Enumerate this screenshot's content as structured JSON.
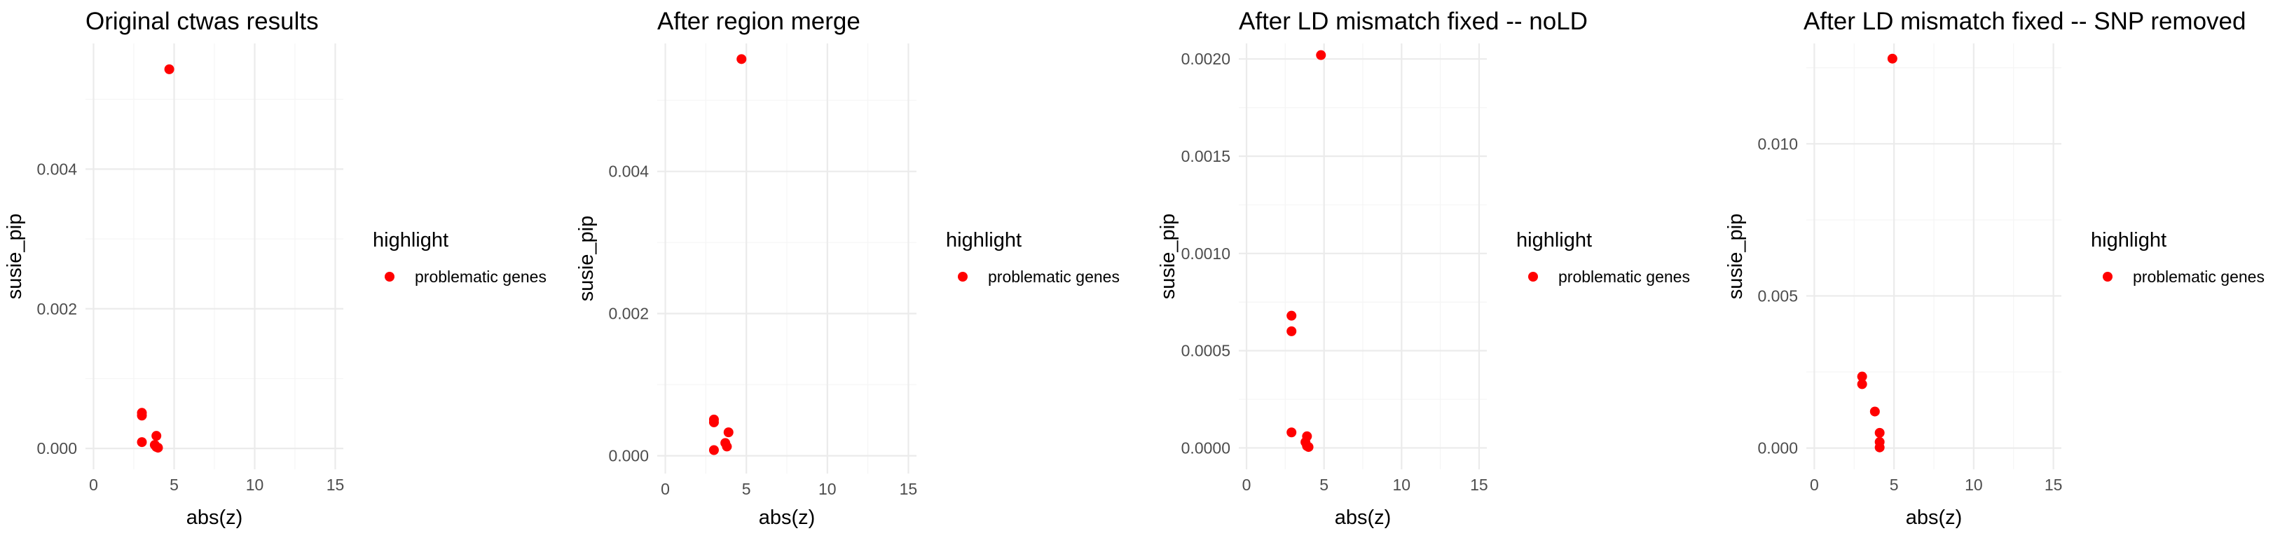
{
  "chart_data": [
    {
      "type": "scatter",
      "title": "Original ctwas results",
      "xlabel": "abs(z)",
      "ylabel": "susie_pip",
      "xlim": [
        -0.5,
        15.5
      ],
      "ylim": [
        -0.0003,
        0.0058
      ],
      "x_ticks": [
        0,
        5,
        10,
        15
      ],
      "x_tick_labels": [
        "0",
        "5",
        "10",
        "15"
      ],
      "y_ticks": [
        0,
        0.002,
        0.004
      ],
      "y_tick_labels": [
        "0.000",
        "0.002",
        "0.004"
      ],
      "grid": true,
      "legend": {
        "title": "highlight",
        "placement": "right",
        "entries": [
          "problematic genes"
        ]
      },
      "point_color": "#ff0000",
      "series": [
        {
          "name": "problematic genes",
          "x": [
            4.7,
            3.0,
            3.0,
            3.0,
            3.9,
            3.8,
            3.9,
            4.0
          ],
          "y": [
            0.00543,
            0.00051,
            0.00047,
            9e-05,
            0.00018,
            5e-05,
            2e-05,
            1e-05
          ]
        }
      ]
    },
    {
      "type": "scatter",
      "title": "After region merge",
      "xlabel": "abs(z)",
      "ylabel": "susie_pip",
      "xlim": [
        -0.5,
        15.5
      ],
      "ylim": [
        -0.00025,
        0.0058
      ],
      "x_ticks": [
        0,
        5,
        10,
        15
      ],
      "x_tick_labels": [
        "0",
        "5",
        "10",
        "15"
      ],
      "y_ticks": [
        0,
        0.002,
        0.004
      ],
      "y_tick_labels": [
        "0.000",
        "0.002",
        "0.004"
      ],
      "grid": true,
      "legend": {
        "title": "highlight",
        "placement": "right",
        "entries": [
          "problematic genes"
        ]
      },
      "point_color": "#ff0000",
      "series": [
        {
          "name": "problematic genes",
          "x": [
            4.7,
            3.0,
            3.0,
            3.0,
            3.9,
            3.7,
            3.8
          ],
          "y": [
            0.00558,
            0.00051,
            0.00047,
            8e-05,
            0.00033,
            0.00018,
            0.00013
          ]
        }
      ]
    },
    {
      "type": "scatter",
      "title": "After LD mismatch fixed -- noLD",
      "xlabel": "abs(z)",
      "ylabel": "susie_pip",
      "xlim": [
        -0.5,
        15.5
      ],
      "ylim": [
        -0.00011,
        0.00208
      ],
      "x_ticks": [
        0,
        5,
        10,
        15
      ],
      "x_tick_labels": [
        "0",
        "5",
        "10",
        "15"
      ],
      "y_ticks": [
        0,
        0.0005,
        0.001,
        0.0015,
        0.002
      ],
      "y_tick_labels": [
        "0.0000",
        "0.0005",
        "0.0010",
        "0.0015",
        "0.0020"
      ],
      "grid": true,
      "legend": {
        "title": "highlight",
        "placement": "right",
        "entries": [
          "problematic genes"
        ]
      },
      "point_color": "#ff0000",
      "series": [
        {
          "name": "problematic genes",
          "x": [
            4.8,
            2.9,
            2.9,
            2.9,
            3.9,
            3.8,
            3.9,
            4.0
          ],
          "y": [
            0.00202,
            0.00068,
            0.0006,
            8e-05,
            6e-05,
            3e-05,
            1e-05,
            5e-06
          ]
        }
      ]
    },
    {
      "type": "scatter",
      "title": "After LD mismatch fixed -- SNP removed",
      "xlabel": "abs(z)",
      "ylabel": "susie_pip",
      "xlim": [
        -0.5,
        15.5
      ],
      "ylim": [
        -0.0007,
        0.0133
      ],
      "x_ticks": [
        0,
        5,
        10,
        15
      ],
      "x_tick_labels": [
        "0",
        "5",
        "10",
        "15"
      ],
      "y_ticks": [
        0,
        0.005,
        0.01
      ],
      "y_tick_labels": [
        "0.000",
        "0.005",
        "0.010"
      ],
      "grid": true,
      "legend": {
        "title": "highlight",
        "placement": "right",
        "entries": [
          "problematic genes"
        ]
      },
      "point_color": "#ff0000",
      "series": [
        {
          "name": "problematic genes",
          "x": [
            4.9,
            3.0,
            3.0,
            3.8,
            4.1,
            4.1,
            4.1
          ],
          "y": [
            0.0128,
            0.00235,
            0.0021,
            0.0012,
            0.0005,
            0.0002,
            2e-05
          ]
        }
      ]
    }
  ]
}
